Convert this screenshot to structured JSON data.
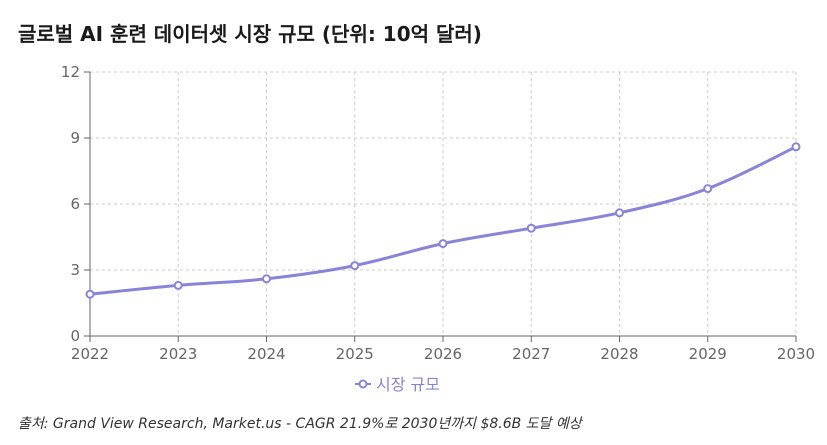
{
  "title": "글로벌 AI 훈련 데이터셋 시장 규모 (단위: 10억 달러)",
  "source": "출처: Grand View Research, Market.us - CAGR 21.9%로 2030년까지 $8.6B 도달 예상",
  "colors": {
    "line": "#8884d8",
    "grid": "#cccccc",
    "axis": "#666666"
  },
  "chart_data": {
    "type": "line",
    "title": "글로벌 AI 훈련 데이터셋 시장 규모 (단위: 10억 달러)",
    "x": [
      "2022",
      "2023",
      "2024",
      "2025",
      "2026",
      "2027",
      "2028",
      "2029",
      "2030"
    ],
    "series": [
      {
        "name": "시장 규모",
        "values": [
          1.9,
          2.3,
          2.6,
          3.2,
          4.2,
          4.9,
          5.6,
          6.7,
          8.6
        ]
      }
    ],
    "yticks": [
      "0",
      "3",
      "6",
      "9",
      "12"
    ],
    "ylim": [
      0,
      12
    ],
    "grid": true,
    "legend": "bottom-center"
  }
}
